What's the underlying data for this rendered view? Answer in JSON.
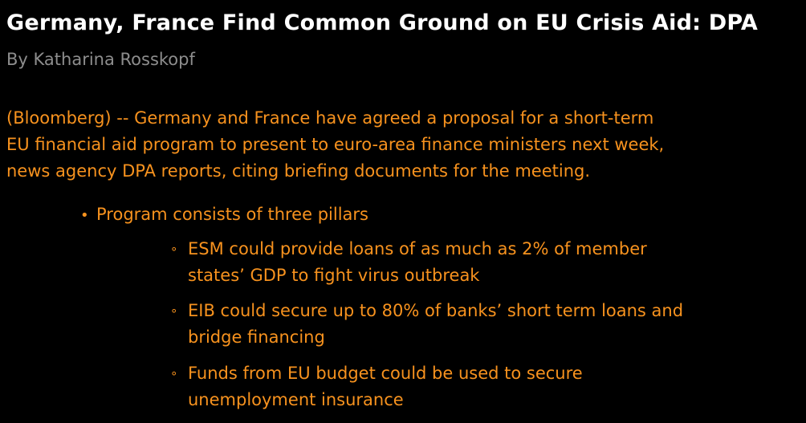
{
  "article": {
    "headline": "Germany, France Find Common Ground on EU Crisis Aid: DPA",
    "byline": "By Katharina Rosskopf",
    "lead_lines": [
      "(Bloomberg) -- Germany and France have agreed a proposal for a short-term",
      "EU financial aid program to present to euro-area finance ministers next week,",
      "news agency DPA reports, citing briefing documents for the meeting."
    ],
    "bullet": {
      "marker": "•",
      "text": "Program consists of three pillars",
      "sub_marker": "∘",
      "sub_items": [
        {
          "lines": [
            "ESM could provide loans of as much as 2% of member",
            "states’ GDP to fight virus outbreak"
          ]
        },
        {
          "lines": [
            "EIB could secure up to 80% of banks’ short term loans and",
            "bridge financing"
          ]
        },
        {
          "lines": [
            "Funds from EU budget could be used to secure",
            "unemployment insurance"
          ]
        }
      ]
    },
    "colors": {
      "background": "#000000",
      "headline": "#ffffff",
      "byline": "#8d8d8d",
      "body": "#f7921e"
    }
  }
}
